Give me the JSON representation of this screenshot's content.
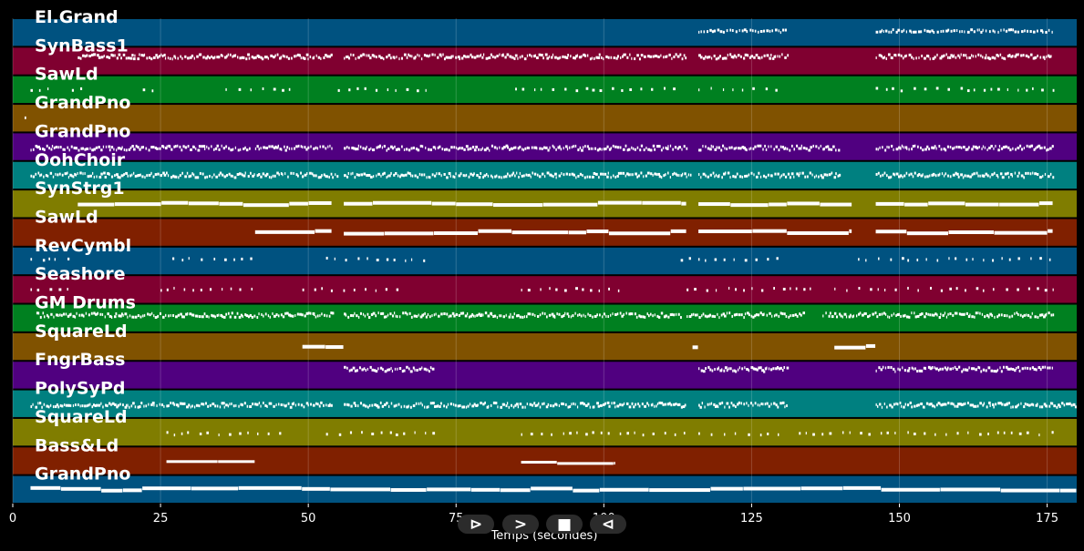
{
  "chart_data": {
    "type": "piano-roll",
    "title": "",
    "xlabel": "Temps (secondes)",
    "ylabel": "",
    "xlim": [
      0,
      180
    ],
    "x_ticks": [
      0,
      25,
      50,
      75,
      100,
      125,
      150,
      175
    ],
    "grid": true,
    "tracks": [
      {
        "name": "El.Grand",
        "color": "#005280",
        "segments": [
          [
            116,
            131
          ],
          [
            146,
            176
          ]
        ],
        "density": "sparse-high",
        "pitch": 0.55
      },
      {
        "name": "SynBass1",
        "color": "#800030",
        "segments": [
          [
            11,
            54
          ],
          [
            56,
            114
          ],
          [
            116,
            131
          ],
          [
            146,
            176
          ]
        ],
        "density": "dense",
        "pitch": 0.65
      },
      {
        "name": "SawLd",
        "color": "#008020",
        "segments": [
          [
            3,
            7
          ],
          [
            10,
            12
          ],
          [
            22,
            24
          ],
          [
            36,
            47
          ],
          [
            55,
            70
          ],
          [
            85,
            113
          ],
          [
            116,
            130
          ],
          [
            146,
            176
          ]
        ],
        "density": "sparse",
        "pitch": 0.5
      },
      {
        "name": "GrandPno",
        "color": "#805200",
        "segments": [
          [
            2,
            3
          ]
        ],
        "density": "sparse",
        "pitch": 0.5
      },
      {
        "name": "GrandPno",
        "color": "#500080",
        "segments": [
          [
            3,
            40
          ],
          [
            41,
            54
          ],
          [
            56,
            114
          ],
          [
            116,
            140
          ],
          [
            146,
            176
          ]
        ],
        "density": "dense",
        "pitch": 0.45
      },
      {
        "name": "OohChoir",
        "color": "#008080",
        "segments": [
          [
            3,
            55
          ],
          [
            56,
            115
          ],
          [
            116,
            140
          ],
          [
            146,
            176
          ]
        ],
        "density": "dense",
        "pitch": 0.5
      },
      {
        "name": "SynStrg1",
        "color": "#807d00",
        "segments": [
          [
            11,
            54
          ],
          [
            56,
            114
          ],
          [
            116,
            131
          ],
          [
            131,
            142
          ],
          [
            146,
            176
          ]
        ],
        "density": "sustain",
        "pitch": 0.5
      },
      {
        "name": "SawLd",
        "color": "#802000",
        "segments": [
          [
            41,
            54
          ],
          [
            56,
            114
          ],
          [
            116,
            131
          ],
          [
            131,
            142
          ],
          [
            146,
            176
          ]
        ],
        "density": "sustain",
        "pitch": 0.5
      },
      {
        "name": "RevCymbl",
        "color": "#005280",
        "segments": [
          [
            3,
            10
          ],
          [
            27,
            41
          ],
          [
            53,
            70
          ],
          [
            113,
            130
          ],
          [
            143,
            176
          ]
        ],
        "density": "sparse",
        "pitch": 0.55
      },
      {
        "name": "Seashore",
        "color": "#800030",
        "segments": [
          [
            3,
            10
          ],
          [
            25,
            41
          ],
          [
            49,
            65
          ],
          [
            86,
            103
          ],
          [
            114,
            135
          ],
          [
            139,
            176
          ]
        ],
        "density": "sparse",
        "pitch": 0.5
      },
      {
        "name": "GM Drums",
        "color": "#008020",
        "segments": [
          [
            4,
            54
          ],
          [
            56,
            113
          ],
          [
            114,
            134
          ],
          [
            137,
            176
          ]
        ],
        "density": "dense",
        "pitch": 0.6
      },
      {
        "name": "SquareLd",
        "color": "#805200",
        "segments": [
          [
            49,
            56
          ],
          [
            115,
            116
          ],
          [
            139,
            146
          ]
        ],
        "density": "sustain",
        "pitch": 0.5
      },
      {
        "name": "FngrBass",
        "color": "#500080",
        "segments": [
          [
            56,
            71
          ],
          [
            116,
            131
          ],
          [
            146,
            176
          ]
        ],
        "density": "dense",
        "pitch": 0.7
      },
      {
        "name": "PolySyPd",
        "color": "#008080",
        "segments": [
          [
            3,
            54
          ],
          [
            56,
            114
          ],
          [
            116,
            131
          ],
          [
            146,
            180
          ]
        ],
        "density": "dense",
        "pitch": 0.45
      },
      {
        "name": "SquareLd",
        "color": "#807d00",
        "segments": [
          [
            26,
            47
          ],
          [
            53,
            71
          ],
          [
            86,
            114
          ],
          [
            116,
            131
          ],
          [
            133,
            176
          ]
        ],
        "density": "sparse",
        "pitch": 0.45
      },
      {
        "name": "Bass&Ld",
        "color": "#802000",
        "segments": [
          [
            26,
            41
          ],
          [
            86,
            102
          ]
        ],
        "density": "sustain-thin",
        "pitch": 0.45
      },
      {
        "name": "GrandPno",
        "color": "#005280",
        "segments": [
          [
            3,
            180
          ]
        ],
        "density": "sustain",
        "pitch": 0.5
      }
    ]
  },
  "controls": {
    "play_label": "⊳",
    "forward_label": ">",
    "stop_label": "■",
    "back_label": "⊲"
  }
}
